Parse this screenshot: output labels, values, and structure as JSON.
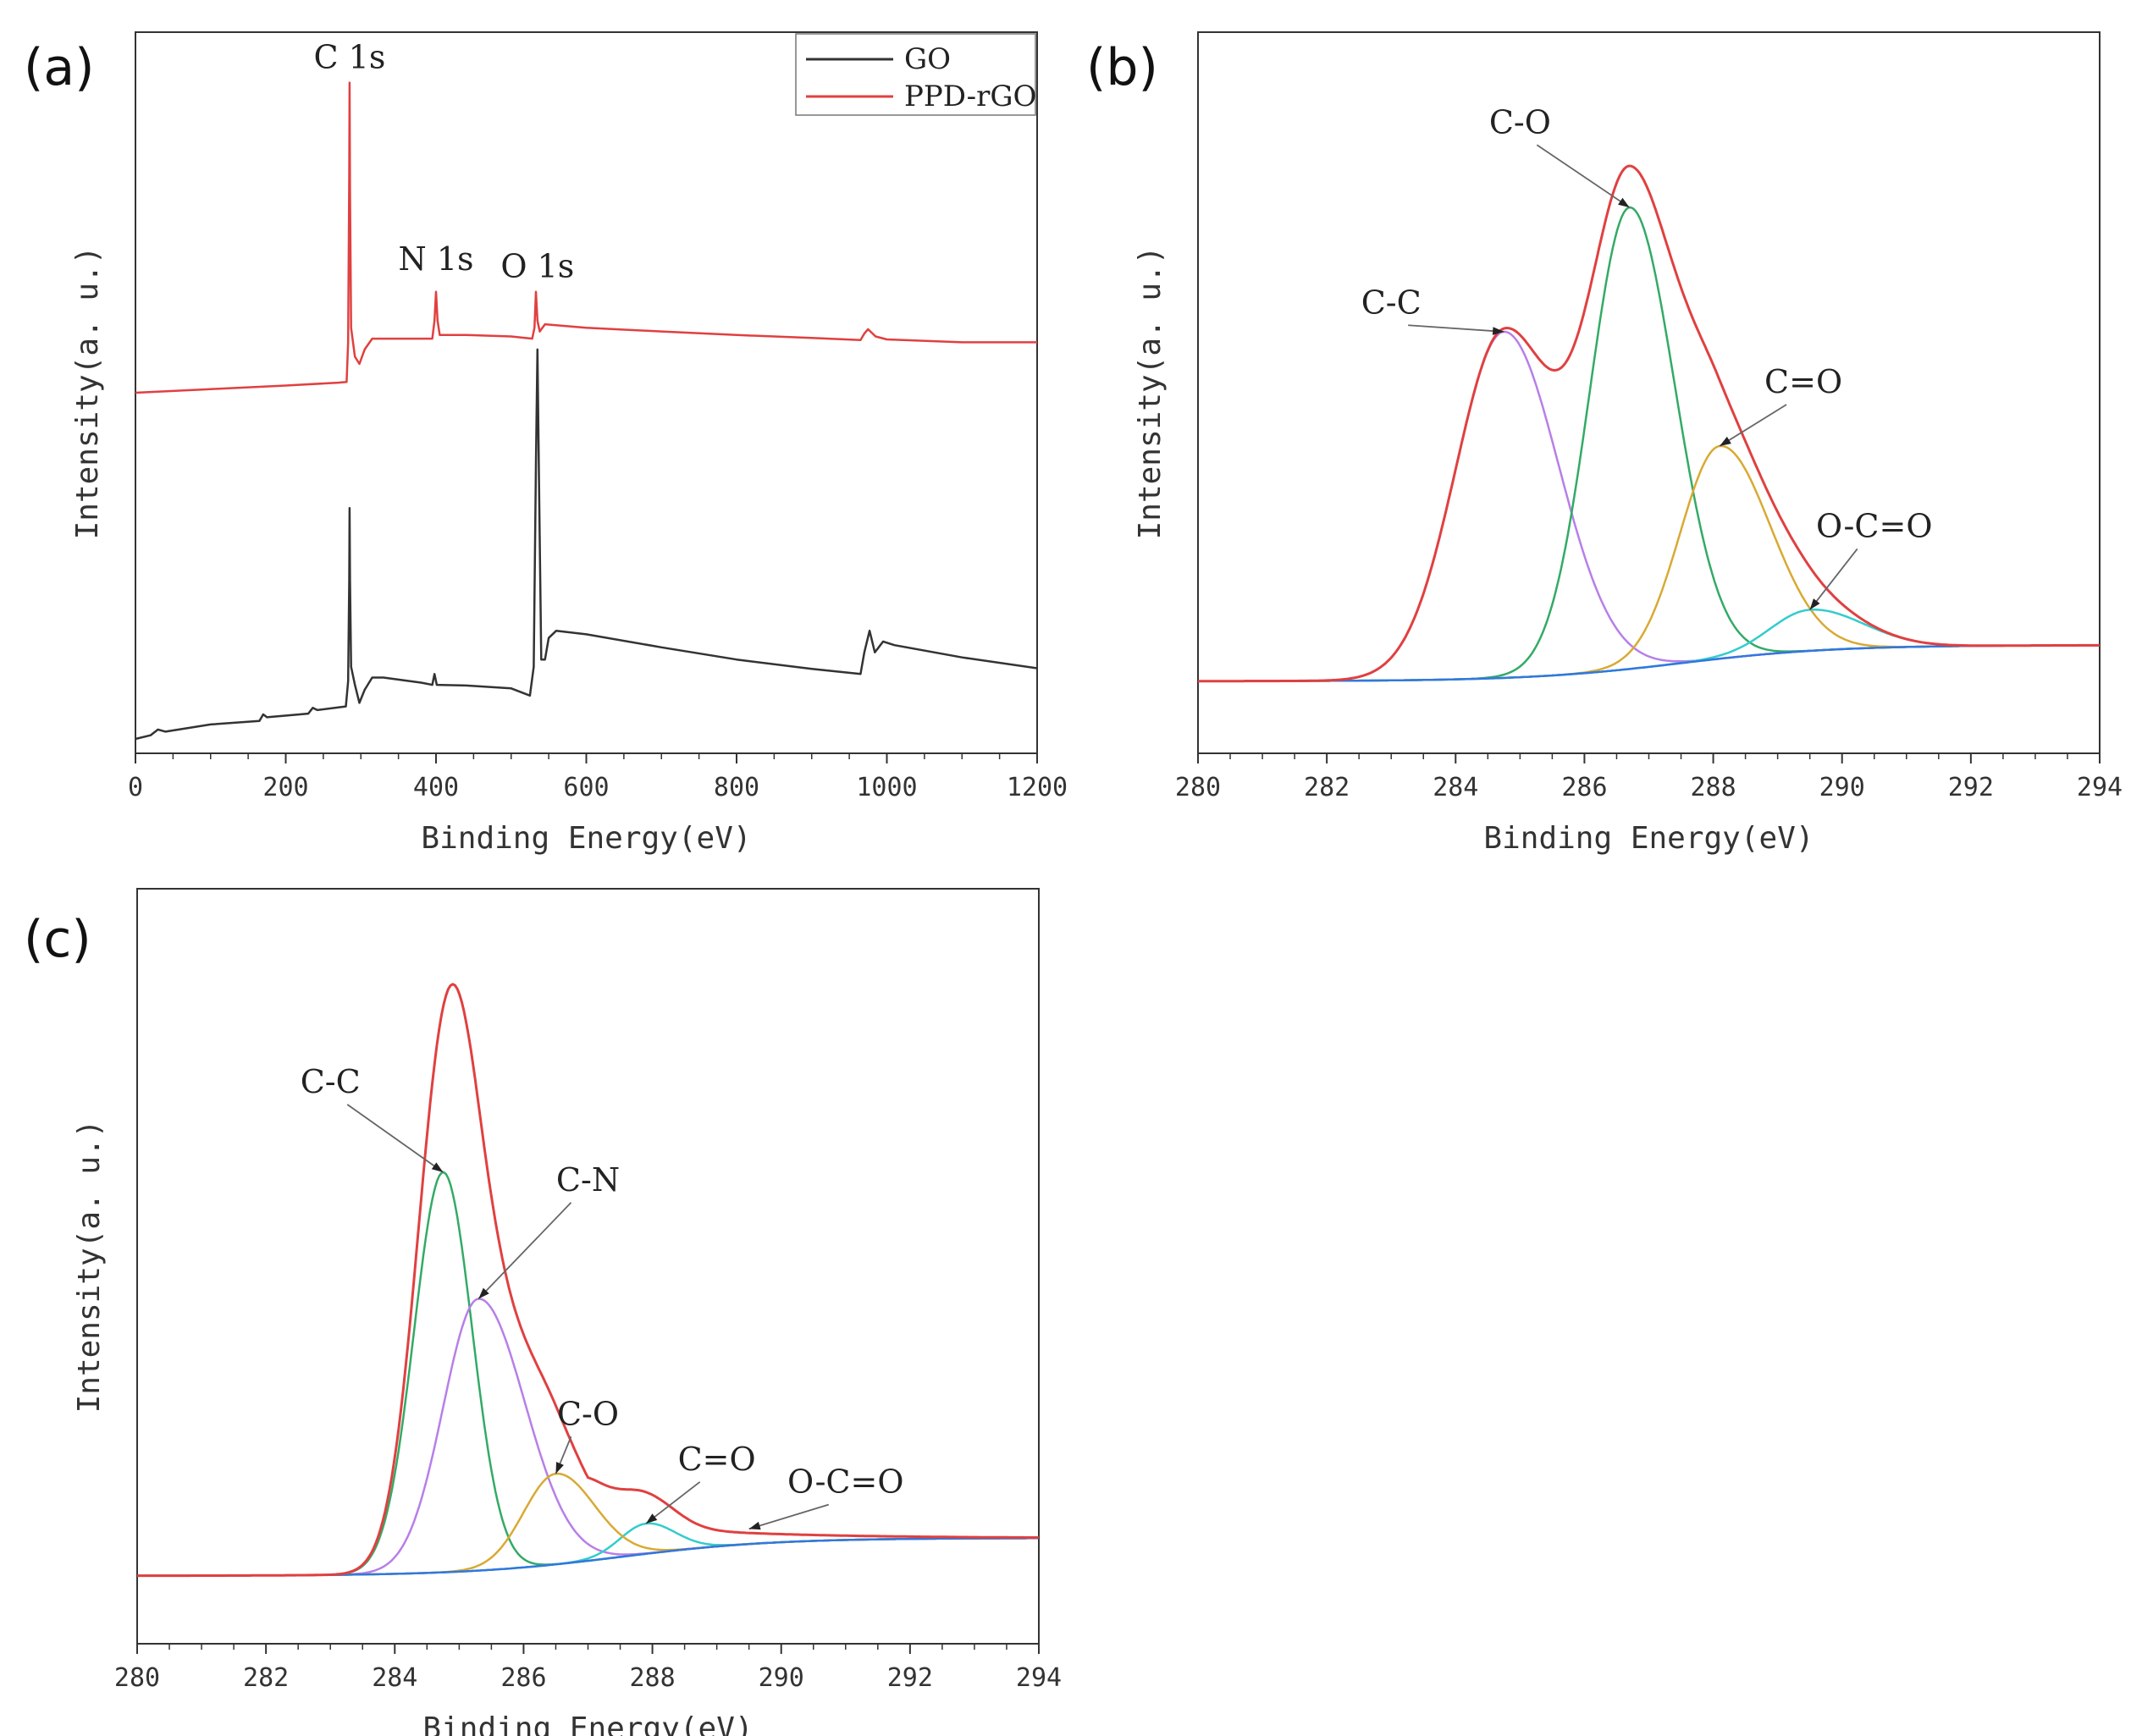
{
  "panels": {
    "a": {
      "label": "(a)"
    },
    "b": {
      "label": "(b)"
    },
    "c": {
      "label": "(c)"
    }
  },
  "chart_data": [
    {
      "id": "a",
      "type": "line",
      "title": "",
      "xlabel": "Binding Energy(eV)",
      "ylabel": "Intensity(a. u.)",
      "xlim": [
        0,
        1200
      ],
      "xticks": [
        0,
        200,
        400,
        600,
        800,
        1000,
        1200
      ],
      "ylim": [
        0,
        100
      ],
      "legend": {
        "placement": "top-right",
        "entries": [
          {
            "name": "GO",
            "color": "#333333"
          },
          {
            "name": "PPD-rGO",
            "color": "#e04040"
          }
        ]
      },
      "series": [
        {
          "name": "GO",
          "color": "#333333",
          "points": [
            [
              0,
              2
            ],
            [
              20,
              2.5
            ],
            [
              30,
              3.3
            ],
            [
              40,
              3
            ],
            [
              100,
              4
            ],
            [
              165,
              4.5
            ],
            [
              170,
              5.4
            ],
            [
              175,
              5
            ],
            [
              230,
              5.5
            ],
            [
              236,
              6.3
            ],
            [
              242,
              6
            ],
            [
              280,
              6.5
            ],
            [
              283,
              10
            ],
            [
              284.5,
              24
            ],
            [
              285,
              34
            ],
            [
              285.5,
              24
            ],
            [
              287,
              12
            ],
            [
              292,
              9.5
            ],
            [
              298,
              7
            ],
            [
              305,
              8.8
            ],
            [
              315,
              10.5
            ],
            [
              330,
              10.5
            ],
            [
              380,
              9.8
            ],
            [
              395,
              9.5
            ],
            [
              398,
              11
            ],
            [
              401,
              9.5
            ],
            [
              440,
              9.4
            ],
            [
              500,
              9
            ],
            [
              525,
              8
            ],
            [
              530,
              12
            ],
            [
              533,
              40
            ],
            [
              535,
              56
            ],
            [
              537,
              38
            ],
            [
              540,
              13
            ],
            [
              545,
              13
            ],
            [
              550,
              16
            ],
            [
              560,
              17
            ],
            [
              600,
              16.5
            ],
            [
              700,
              14.7
            ],
            [
              800,
              13
            ],
            [
              900,
              11.7
            ],
            [
              965,
              11
            ],
            [
              970,
              14
            ],
            [
              977,
              17
            ],
            [
              984,
              14
            ],
            [
              995,
              15.5
            ],
            [
              1010,
              15
            ],
            [
              1100,
              13.3
            ],
            [
              1200,
              11.8
            ]
          ]
        },
        {
          "name": "PPD-rGO",
          "color": "#e04040",
          "points": [
            [
              0,
              50
            ],
            [
              100,
              50.5
            ],
            [
              200,
              51
            ],
            [
              270,
              51.4
            ],
            [
              281,
              51.5
            ],
            [
              283,
              57
            ],
            [
              284.5,
              80
            ],
            [
              285,
              93
            ],
            [
              285.5,
              78
            ],
            [
              287,
              59
            ],
            [
              292,
              55
            ],
            [
              298,
              54
            ],
            [
              305,
              56
            ],
            [
              315,
              57.5
            ],
            [
              340,
              57.5
            ],
            [
              380,
              57.5
            ],
            [
              395,
              57.5
            ],
            [
              398,
              60
            ],
            [
              400,
              64
            ],
            [
              402,
              60
            ],
            [
              405,
              58
            ],
            [
              440,
              58
            ],
            [
              500,
              57.8
            ],
            [
              528,
              57.5
            ],
            [
              531,
              59
            ],
            [
              533,
              64
            ],
            [
              535,
              60
            ],
            [
              538,
              58.5
            ],
            [
              545,
              59.5
            ],
            [
              600,
              59
            ],
            [
              700,
              58.5
            ],
            [
              800,
              58
            ],
            [
              900,
              57.6
            ],
            [
              965,
              57.3
            ],
            [
              970,
              58.2
            ],
            [
              975,
              58.8
            ],
            [
              985,
              57.8
            ],
            [
              1000,
              57.4
            ],
            [
              1100,
              57
            ],
            [
              1200,
              57
            ]
          ]
        }
      ],
      "annotations": [
        {
          "text": "C 1s",
          "x": 285,
          "y": 95
        },
        {
          "text": "N 1s",
          "x": 400,
          "y": 67
        },
        {
          "text": "O 1s",
          "x": 535,
          "y": 66
        }
      ]
    },
    {
      "id": "b",
      "type": "line",
      "title": "",
      "xlabel": "Binding Energy(eV)",
      "ylabel": "Intensity(a. u.)",
      "xlim": [
        280,
        294
      ],
      "xticks": [
        280,
        282,
        284,
        286,
        288,
        290,
        292,
        294
      ],
      "ylim": [
        0,
        100
      ],
      "baseline": {
        "x0": 280,
        "y0": 10,
        "x1": 294,
        "y1": 15
      },
      "components": [
        {
          "name": "C-C",
          "center": 284.75,
          "height": 48,
          "sigmaL": 0.75,
          "sigmaR": 0.85,
          "color": "#b77fe8"
        },
        {
          "name": "C-O",
          "center": 286.7,
          "height": 64,
          "sigmaL": 0.62,
          "sigmaR": 0.7,
          "color": "#33aa66"
        },
        {
          "name": "C=O",
          "center": 288.1,
          "height": 29.5,
          "sigmaL": 0.62,
          "sigmaR": 0.78,
          "color": "#d8aa33"
        },
        {
          "name": "O-C=O",
          "center": 289.5,
          "height": 5.7,
          "sigmaL": 0.62,
          "sigmaR": 0.82,
          "color": "#33cccc"
        }
      ],
      "envelope": {
        "name": "Envelope",
        "color": "#e04040"
      },
      "background": {
        "name": "Background",
        "color": "#3377dd"
      },
      "annotations": [
        {
          "text": "C-C",
          "x": 283.0,
          "y": 61
        },
        {
          "text": "C-O",
          "x": 285.0,
          "y": 86
        },
        {
          "text": "C=O",
          "x": 289.4,
          "y": 50
        },
        {
          "text": "O-C=O",
          "x": 290.5,
          "y": 30
        }
      ]
    },
    {
      "id": "c",
      "type": "line",
      "title": "",
      "xlabel": "Binding Energy(eV)",
      "ylabel": "Intensity(a. u.)",
      "xlim": [
        280,
        294
      ],
      "xticks": [
        280,
        282,
        284,
        286,
        288,
        290,
        292,
        294
      ],
      "ylim": [
        0,
        100
      ],
      "baseline": {
        "x0": 280,
        "y0": 9,
        "x1": 294,
        "y1": 14
      },
      "components": [
        {
          "name": "C-C",
          "center": 284.75,
          "height": 53,
          "sigmaL": 0.45,
          "sigmaR": 0.45,
          "color": "#33aa66"
        },
        {
          "name": "C-N",
          "center": 285.3,
          "height": 36,
          "sigmaL": 0.55,
          "sigmaR": 0.72,
          "color": "#b77fe8"
        },
        {
          "name": "C=O",
          "center": 287.9,
          "height": 4,
          "sigmaL": 0.4,
          "sigmaR": 0.45,
          "color": "#33cccc"
        },
        {
          "name": "C-O",
          "center": 286.5,
          "height": 12,
          "sigmaL": 0.5,
          "sigmaR": 0.6,
          "color": "#d8aa33"
        }
      ],
      "extraEnvelopeTail": {
        "start": 287.0,
        "amplitude": 7,
        "decay": 1.6
      },
      "envelope": {
        "name": "Envelope",
        "color": "#e04040"
      },
      "background": {
        "name": "Background",
        "color": "#3377dd"
      },
      "annotations": [
        {
          "text": "C-C",
          "x": 283.0,
          "y": 73
        },
        {
          "text": "C-N",
          "x": 287.0,
          "y": 60
        },
        {
          "text": "C-O",
          "x": 287.0,
          "y": 29
        },
        {
          "text": "C=O",
          "x": 289.0,
          "y": 23
        },
        {
          "text": "O-C=O",
          "x": 291.0,
          "y": 20
        }
      ]
    }
  ]
}
